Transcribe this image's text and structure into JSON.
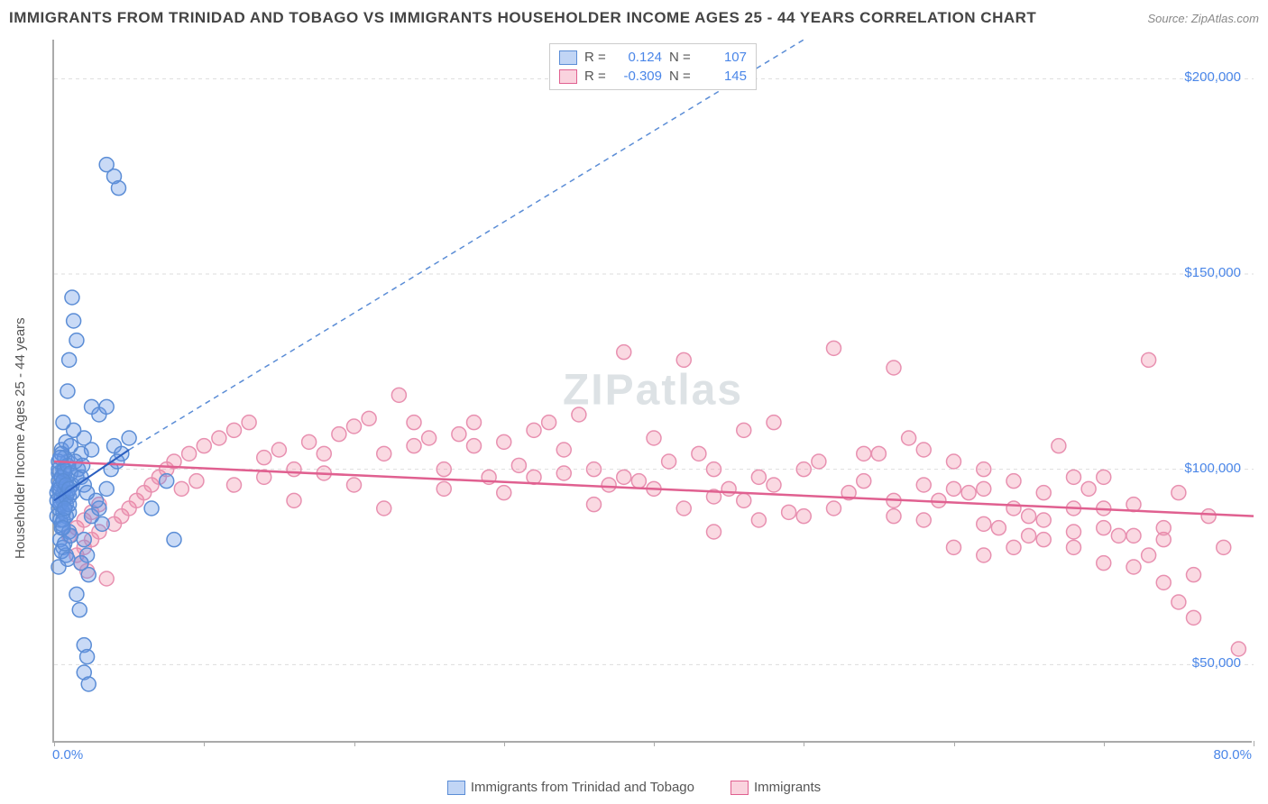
{
  "header": {
    "title": "IMMIGRANTS FROM TRINIDAD AND TOBAGO VS IMMIGRANTS HOUSEHOLDER INCOME AGES 25 - 44 YEARS CORRELATION CHART",
    "source_prefix": "Source: ",
    "source": "ZipAtlas.com"
  },
  "watermark": "ZIPatlas",
  "chart": {
    "type": "scatter",
    "y_axis_label": "Householder Income Ages 25 - 44 years",
    "xlim": [
      0,
      80
    ],
    "ylim": [
      30000,
      210000
    ],
    "x_ticks": [
      0,
      10,
      20,
      30,
      40,
      50,
      60,
      70,
      80
    ],
    "x_tick_labels": {
      "0": "0.0%",
      "80": "80.0%"
    },
    "y_ticks": [
      50000,
      100000,
      150000,
      200000
    ],
    "y_tick_labels": {
      "50000": "$50,000",
      "100000": "$100,000",
      "150000": "$150,000",
      "200000": "$200,000"
    },
    "grid_color": "#dddddd",
    "background_color": "#ffffff",
    "axis_color": "#aaaaaa",
    "tick_label_color": "#4a86e8",
    "label_fontsize": 15,
    "marker_radius": 8,
    "marker_opacity": 0.45,
    "series": [
      {
        "name": "Immigrants from Trinidad and Tobago",
        "color_fill": "rgba(100,150,230,0.35)",
        "color_stroke": "#5b8dd6",
        "R": "0.124",
        "N": "107",
        "trendline": {
          "x1": 0,
          "y1": 92000,
          "x2": 5,
          "y2": 105000,
          "solid": true,
          "ext_x2": 50,
          "ext_y2": 210000,
          "dash": "6,5",
          "width": 2
        },
        "points": [
          [
            0.3,
            95000
          ],
          [
            0.5,
            98000
          ],
          [
            0.4,
            92000
          ],
          [
            0.6,
            100000
          ],
          [
            0.2,
            88000
          ],
          [
            0.8,
            97000
          ],
          [
            1.0,
            93000
          ],
          [
            0.5,
            105000
          ],
          [
            0.7,
            90000
          ],
          [
            0.3,
            99000
          ],
          [
            1.2,
            96000
          ],
          [
            0.9,
            102000
          ],
          [
            0.4,
            87000
          ],
          [
            0.6,
            94000
          ],
          [
            1.5,
            98000
          ],
          [
            0.8,
            91000
          ],
          [
            0.5,
            85000
          ],
          [
            0.3,
            100000
          ],
          [
            1.0,
            89000
          ],
          [
            0.7,
            103000
          ],
          [
            3.5,
            178000
          ],
          [
            4.0,
            175000
          ],
          [
            4.3,
            172000
          ],
          [
            1.2,
            144000
          ],
          [
            1.3,
            138000
          ],
          [
            1.5,
            133000
          ],
          [
            1.0,
            128000
          ],
          [
            2.5,
            116000
          ],
          [
            3.0,
            114000
          ],
          [
            3.5,
            116000
          ],
          [
            7.5,
            97000
          ],
          [
            6.5,
            90000
          ],
          [
            8.0,
            82000
          ],
          [
            2.0,
            108000
          ],
          [
            2.5,
            105000
          ],
          [
            0.8,
            107000
          ],
          [
            1.3,
            110000
          ],
          [
            1.8,
            104000
          ],
          [
            0.6,
            112000
          ],
          [
            1.1,
            106000
          ],
          [
            2.0,
            82000
          ],
          [
            2.2,
            78000
          ],
          [
            1.8,
            76000
          ],
          [
            2.3,
            73000
          ],
          [
            1.5,
            68000
          ],
          [
            1.7,
            64000
          ],
          [
            2.0,
            55000
          ],
          [
            2.2,
            52000
          ],
          [
            2.0,
            48000
          ],
          [
            2.3,
            45000
          ],
          [
            0.2,
            94000
          ],
          [
            0.4,
            96000
          ],
          [
            0.6,
            92000
          ],
          [
            0.3,
            90000
          ],
          [
            0.5,
            93000
          ],
          [
            0.7,
            95000
          ],
          [
            0.8,
            88000
          ],
          [
            0.4,
            91000
          ],
          [
            0.6,
            89000
          ],
          [
            0.9,
            94000
          ],
          [
            0.3,
            97000
          ],
          [
            0.5,
            86000
          ],
          [
            0.7,
            99000
          ],
          [
            0.2,
            92000
          ],
          [
            0.4,
            95000
          ],
          [
            0.6,
            87000
          ],
          [
            0.8,
            93000
          ],
          [
            1.0,
            91000
          ],
          [
            0.5,
            98000
          ],
          [
            0.7,
            90000
          ],
          [
            0.3,
            102000
          ],
          [
            0.5,
            104000
          ],
          [
            0.7,
            100000
          ],
          [
            0.9,
            101000
          ],
          [
            1.1,
            99000
          ],
          [
            0.4,
            103000
          ],
          [
            0.6,
            97000
          ],
          [
            0.8,
            96000
          ],
          [
            1.0,
            95000
          ],
          [
            1.2,
            94000
          ],
          [
            0.4,
            82000
          ],
          [
            0.6,
            80000
          ],
          [
            0.8,
            78000
          ],
          [
            1.0,
            84000
          ],
          [
            0.5,
            79000
          ],
          [
            0.7,
            81000
          ],
          [
            0.9,
            77000
          ],
          [
            1.1,
            83000
          ],
          [
            0.3,
            75000
          ],
          [
            0.6,
            85000
          ],
          [
            2.5,
            88000
          ],
          [
            3.0,
            90000
          ],
          [
            3.2,
            86000
          ],
          [
            2.8,
            92000
          ],
          [
            1.6,
            100000
          ],
          [
            1.8,
            98000
          ],
          [
            2.0,
            96000
          ],
          [
            2.2,
            94000
          ],
          [
            1.4,
            102000
          ],
          [
            1.9,
            101000
          ],
          [
            4.0,
            106000
          ],
          [
            4.5,
            104000
          ],
          [
            5.0,
            108000
          ],
          [
            3.8,
            100000
          ],
          [
            4.2,
            102000
          ],
          [
            3.5,
            95000
          ],
          [
            0.9,
            120000
          ]
        ]
      },
      {
        "name": "Immigrants",
        "color_fill": "rgba(240,130,160,0.30)",
        "color_stroke": "#e890b0",
        "R": "-0.309",
        "N": "145",
        "trendline": {
          "x1": 0,
          "y1": 102000,
          "x2": 80,
          "y2": 88000,
          "solid": true,
          "width": 2.5,
          "stroke": "#e06090"
        },
        "points": [
          [
            1.5,
            78000
          ],
          [
            2.0,
            80000
          ],
          [
            2.5,
            82000
          ],
          [
            1.8,
            76000
          ],
          [
            2.2,
            74000
          ],
          [
            3.0,
            84000
          ],
          [
            3.5,
            72000
          ],
          [
            4.0,
            86000
          ],
          [
            4.5,
            88000
          ],
          [
            5.0,
            90000
          ],
          [
            5.5,
            92000
          ],
          [
            6.0,
            94000
          ],
          [
            6.5,
            96000
          ],
          [
            7.0,
            98000
          ],
          [
            7.5,
            100000
          ],
          [
            8.0,
            102000
          ],
          [
            8.5,
            95000
          ],
          [
            9.0,
            104000
          ],
          [
            9.5,
            97000
          ],
          [
            10,
            106000
          ],
          [
            11,
            108000
          ],
          [
            12,
            110000
          ],
          [
            13,
            112000
          ],
          [
            14,
            103000
          ],
          [
            15,
            105000
          ],
          [
            16,
            100000
          ],
          [
            17,
            107000
          ],
          [
            18,
            99000
          ],
          [
            19,
            109000
          ],
          [
            20,
            111000
          ],
          [
            21,
            113000
          ],
          [
            22,
            104000
          ],
          [
            23,
            119000
          ],
          [
            24,
            106000
          ],
          [
            25,
            108000
          ],
          [
            26,
            100000
          ],
          [
            27,
            109000
          ],
          [
            28,
            112000
          ],
          [
            29,
            98000
          ],
          [
            30,
            107000
          ],
          [
            31,
            101000
          ],
          [
            32,
            110000
          ],
          [
            33,
            112000
          ],
          [
            34,
            99000
          ],
          [
            35,
            114000
          ],
          [
            36,
            100000
          ],
          [
            37,
            96000
          ],
          [
            38,
            130000
          ],
          [
            39,
            97000
          ],
          [
            40,
            108000
          ],
          [
            41,
            102000
          ],
          [
            42,
            128000
          ],
          [
            43,
            104000
          ],
          [
            44,
            93000
          ],
          [
            45,
            95000
          ],
          [
            46,
            110000
          ],
          [
            47,
            98000
          ],
          [
            48,
            112000
          ],
          [
            49,
            89000
          ],
          [
            50,
            100000
          ],
          [
            51,
            102000
          ],
          [
            52,
            131000
          ],
          [
            53,
            94000
          ],
          [
            54,
            97000
          ],
          [
            55,
            104000
          ],
          [
            56,
            88000
          ],
          [
            57,
            108000
          ],
          [
            58,
            105000
          ],
          [
            59,
            92000
          ],
          [
            60,
            95000
          ],
          [
            61,
            94000
          ],
          [
            62,
            100000
          ],
          [
            63,
            85000
          ],
          [
            64,
            97000
          ],
          [
            65,
            88000
          ],
          [
            66,
            82000
          ],
          [
            67,
            106000
          ],
          [
            68,
            80000
          ],
          [
            69,
            95000
          ],
          [
            70,
            98000
          ],
          [
            71,
            83000
          ],
          [
            72,
            91000
          ],
          [
            73,
            128000
          ],
          [
            74,
            82000
          ],
          [
            75,
            94000
          ],
          [
            76,
            73000
          ],
          [
            77,
            88000
          ],
          [
            78,
            80000
          ],
          [
            79,
            54000
          ],
          [
            74,
            71000
          ],
          [
            75,
            66000
          ],
          [
            73,
            78000
          ],
          [
            70,
            85000
          ],
          [
            68,
            90000
          ],
          [
            65,
            83000
          ],
          [
            62,
            78000
          ],
          [
            56,
            126000
          ],
          [
            47,
            87000
          ],
          [
            44,
            84000
          ],
          [
            12,
            96000
          ],
          [
            14,
            98000
          ],
          [
            16,
            92000
          ],
          [
            18,
            104000
          ],
          [
            20,
            96000
          ],
          [
            22,
            90000
          ],
          [
            24,
            112000
          ],
          [
            26,
            95000
          ],
          [
            28,
            106000
          ],
          [
            30,
            94000
          ],
          [
            32,
            98000
          ],
          [
            34,
            105000
          ],
          [
            36,
            91000
          ],
          [
            38,
            98000
          ],
          [
            40,
            95000
          ],
          [
            42,
            90000
          ],
          [
            44,
            100000
          ],
          [
            46,
            92000
          ],
          [
            48,
            96000
          ],
          [
            50,
            88000
          ],
          [
            52,
            90000
          ],
          [
            54,
            104000
          ],
          [
            56,
            92000
          ],
          [
            58,
            87000
          ],
          [
            60,
            80000
          ],
          [
            62,
            86000
          ],
          [
            64,
            90000
          ],
          [
            66,
            94000
          ],
          [
            68,
            84000
          ],
          [
            70,
            76000
          ],
          [
            72,
            75000
          ],
          [
            58,
            96000
          ],
          [
            60,
            102000
          ],
          [
            62,
            95000
          ],
          [
            64,
            80000
          ],
          [
            66,
            87000
          ],
          [
            68,
            98000
          ],
          [
            70,
            90000
          ],
          [
            72,
            83000
          ],
          [
            74,
            85000
          ],
          [
            76,
            62000
          ],
          [
            1.0,
            83000
          ],
          [
            1.5,
            85000
          ],
          [
            2.0,
            87000
          ],
          [
            2.5,
            89000
          ],
          [
            3.0,
            91000
          ]
        ]
      }
    ]
  },
  "legend_top": {
    "r_label": "R =",
    "n_label": "N ="
  },
  "legend_bottom": {
    "items": [
      "Immigrants from Trinidad and Tobago",
      "Immigrants"
    ]
  }
}
